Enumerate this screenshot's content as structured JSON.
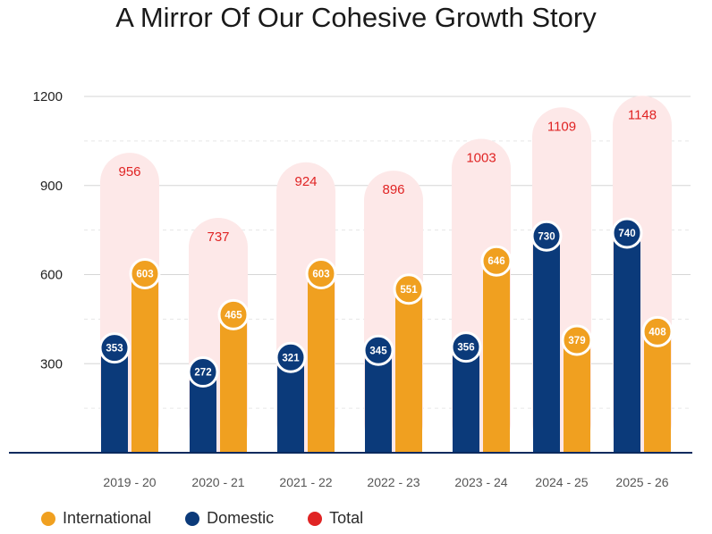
{
  "chart_data": {
    "type": "bar",
    "title": "A Mirror Of Our Cohesive Growth Story",
    "categories": [
      "2019 - 20",
      "2020 - 21",
      "2021 - 22",
      "2022 - 23",
      "2023 - 24",
      "2024 - 25",
      "2025 - 26"
    ],
    "series": [
      {
        "name": "Domestic",
        "color": "#0b3a7a",
        "values": [
          353,
          272,
          321,
          345,
          356,
          730,
          740
        ]
      },
      {
        "name": "International",
        "color": "#f0a020",
        "values": [
          603,
          465,
          603,
          551,
          646,
          379,
          408
        ]
      },
      {
        "name": "Total",
        "color": "#e02424",
        "values": [
          956,
          737,
          924,
          896,
          1003,
          1109,
          1148
        ]
      }
    ],
    "y_ticks": [
      300,
      600,
      900,
      1200
    ],
    "ylim": [
      0,
      1200
    ],
    "grid": true,
    "legend_position": "bottom-left"
  }
}
